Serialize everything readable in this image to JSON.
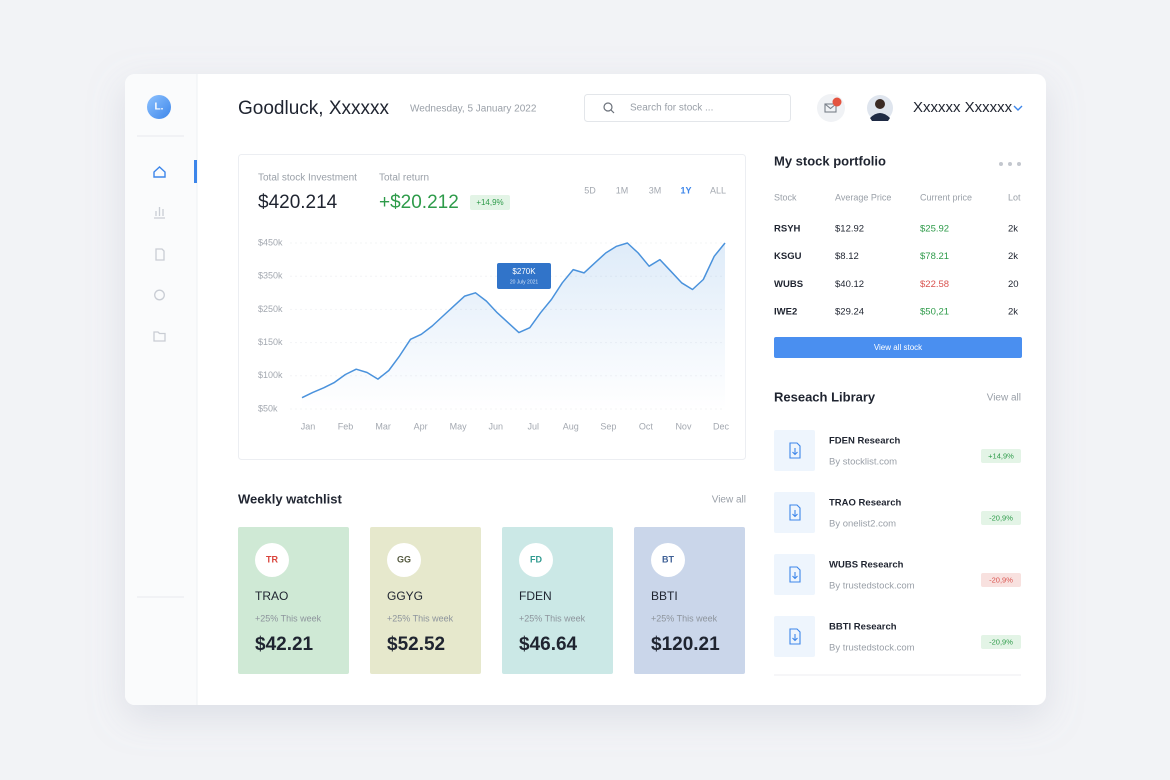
{
  "sidebar": {
    "logo": "L."
  },
  "header": {
    "greeting": "Goodluck, Xxxxxx",
    "date": "Wednesday, 5 January 2022",
    "search_placeholder": "Search for stock ...",
    "user_name": "Xxxxxx Xxxxxx"
  },
  "summary": {
    "investment_label": "Total stock Investment",
    "investment": "$420.214",
    "return_label": "Total return",
    "return": "+$20.212",
    "return_change": "+14,9%",
    "periods": [
      "5D",
      "1M",
      "3M",
      "1Y",
      "ALL"
    ],
    "active_period": 3
  },
  "chart": {
    "type": "line",
    "color": "#4a92dc",
    "x_labels": [
      "Jan",
      "Feb",
      "Mar",
      "Apr",
      "May",
      "Jun",
      "Jul",
      "Aug",
      "Sep",
      "Oct",
      "Nov",
      "Dec"
    ],
    "values": [
      67,
      75,
      82,
      90,
      102,
      110,
      105,
      95,
      108,
      130,
      160,
      175,
      200,
      230,
      260,
      290,
      300,
      275,
      240,
      210,
      180,
      195,
      240,
      280,
      330,
      370,
      360,
      390,
      420,
      440,
      450,
      420,
      380,
      400,
      365,
      330,
      310,
      340,
      410,
      450
    ],
    "ylim": [
      50,
      450
    ],
    "yticks": [
      {
        "value": 450,
        "label": "$450k"
      },
      {
        "value": 350,
        "label": "$350k"
      },
      {
        "value": 250,
        "label": "$250k"
      },
      {
        "value": 150,
        "label": "$150k"
      },
      {
        "value": 100,
        "label": "$100k"
      },
      {
        "value": 50,
        "label": "$50k"
      }
    ],
    "tooltip": {
      "value": "$270K",
      "date": "20 July 2021"
    }
  },
  "watchlist": {
    "title": "Weekly watchlist",
    "view_all": "View all",
    "items": [
      {
        "code": "TR",
        "name": "TRAO",
        "change": "+25% This week",
        "price": "$42.21",
        "color": "#cfe9d5",
        "code_color": "#d9433b"
      },
      {
        "code": "GG",
        "name": "GGYG",
        "change": "+25% This week",
        "price": "$52.52",
        "color": "#e6e8cc",
        "code_color": "#555a40"
      },
      {
        "code": "FD",
        "name": "FDEN",
        "change": "+25% This week",
        "price": "$46.64",
        "color": "#cbe8e6",
        "code_color": "#2f9a8f"
      },
      {
        "code": "BT",
        "name": "BBTI",
        "change": "+25% This week",
        "price": "$120.21",
        "color": "#cad6ea",
        "code_color": "#3d5f95"
      }
    ]
  },
  "portfolio": {
    "title": "My stock portfolio",
    "columns": [
      "Stock",
      "Average Price",
      "Current price",
      "Lot"
    ],
    "rows": [
      {
        "stock": "RSYH",
        "average_price": "$12.92",
        "current_price": "$25.92",
        "lot": "2k",
        "color": "#2e9b4a"
      },
      {
        "stock": "KSGU",
        "average_price": "$8.12",
        "current_price": "$78.21",
        "lot": "2k",
        "color": "#2e9b4a"
      },
      {
        "stock": "WUBS",
        "average_price": "$40.12",
        "current_price": "$22.58",
        "lot": "20",
        "color": "#d9534f"
      },
      {
        "stock": "IWE2",
        "average_price": "$29.24",
        "current_price": "$50,21",
        "lot": "2k",
        "color": "#2e9b4a"
      }
    ],
    "button": "View all stock"
  },
  "research": {
    "title": "Reseach Library",
    "view_all": "View all",
    "items": [
      {
        "title": "FDEN Research",
        "source": "By stocklist.com",
        "change": "+14,9%",
        "up": true
      },
      {
        "title": "TRAO Research",
        "source": "By onelist2.com",
        "change": "-20,9%",
        "up": true
      },
      {
        "title": "WUBS Research",
        "source": "By trustedstock.com",
        "change": "-20,9%",
        "up": false
      },
      {
        "title": "BBTI  Research",
        "source": "By trustedstock.com",
        "change": "-20,9%",
        "up": true
      }
    ]
  }
}
